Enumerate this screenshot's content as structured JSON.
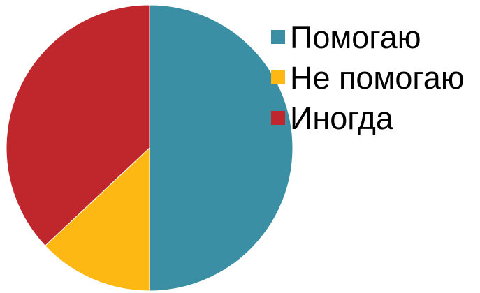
{
  "chart_data": {
    "type": "pie",
    "title": "",
    "categories": [
      "Помогаю",
      "Не помогаю",
      "Иногда"
    ],
    "values": [
      50,
      13,
      37
    ],
    "colors": [
      "#3B8FA5",
      "#FDB813",
      "#C0272D"
    ],
    "start_angle_deg": 0,
    "direction": "clockwise",
    "legend_position": "right"
  }
}
